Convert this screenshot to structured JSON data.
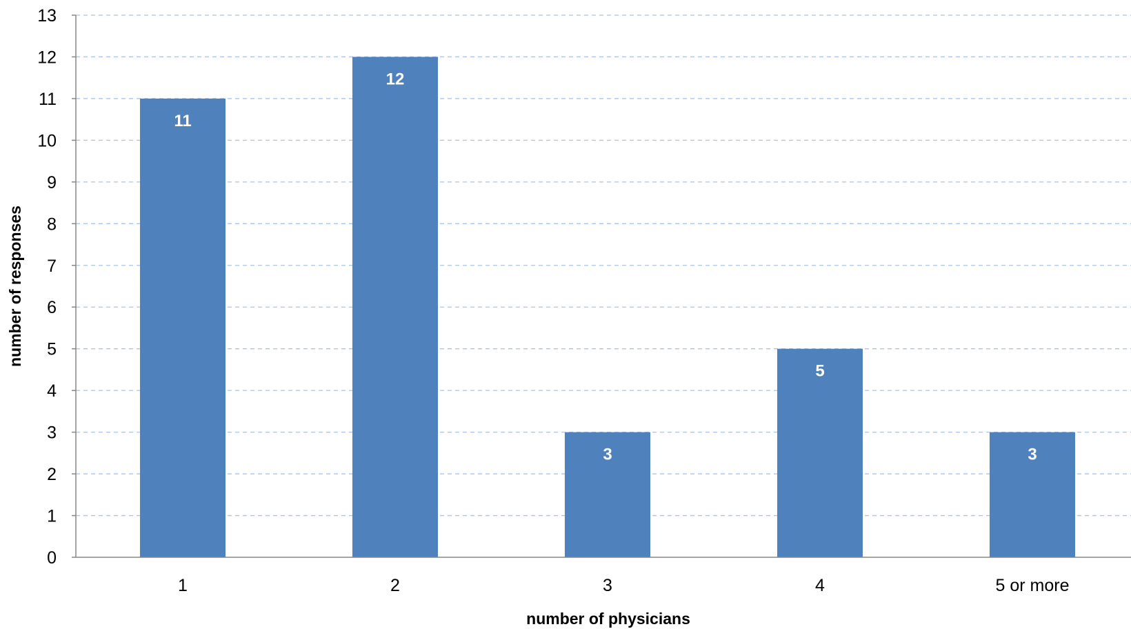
{
  "chart_data": {
    "type": "bar",
    "title": "",
    "xlabel": "number of physicians",
    "ylabel": "number of responses",
    "categories": [
      "1",
      "2",
      "3",
      "4",
      "5 or more"
    ],
    "values": [
      11,
      12,
      3,
      5,
      3
    ],
    "data_labels": [
      "11",
      "12",
      "3",
      "5",
      "3"
    ],
    "ylim": [
      0,
      13
    ],
    "yticks": [
      "0",
      "1",
      "2",
      "3",
      "4",
      "5",
      "6",
      "7",
      "8",
      "9",
      "10",
      "11",
      "12",
      "13"
    ],
    "grid": true,
    "grid_style": "dashed",
    "legend": "none",
    "colors": {
      "bar": "#4F81BD",
      "grid": "#A9C4E6",
      "axis": "#868686",
      "data_label": "#FFFFFF"
    }
  }
}
